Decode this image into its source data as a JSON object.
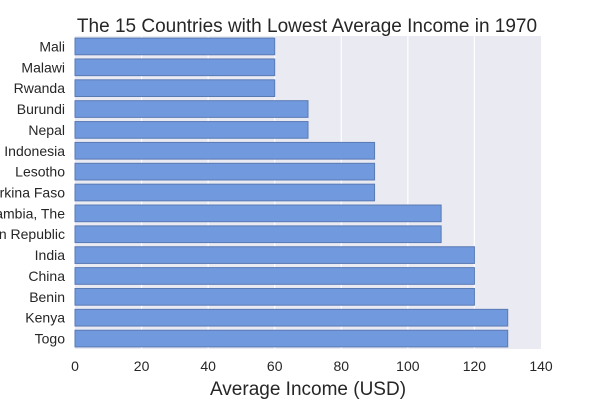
{
  "chart_data": {
    "type": "bar",
    "orientation": "horizontal",
    "title": "The 15 Countries with Lowest Average Income in 1970",
    "xlabel": "Average Income (USD)",
    "ylabel": "",
    "xlim": [
      0,
      140
    ],
    "xticks": [
      0,
      20,
      40,
      60,
      80,
      100,
      120,
      140
    ],
    "grid": true,
    "categories": [
      "Mali",
      "Malawi",
      "Rwanda",
      "Burundi",
      "Nepal",
      "Indonesia",
      "Lesotho",
      "Burkina Faso",
      "Gambia, The",
      "Central African Republic",
      "India",
      "China",
      "Benin",
      "Kenya",
      "Togo"
    ],
    "values": [
      60,
      60,
      60,
      70,
      70,
      90,
      90,
      90,
      110,
      110,
      120,
      120,
      120,
      130,
      130
    ],
    "colors": {
      "bar": "#7199DE",
      "bar_edge": "#5A7AB4",
      "plot_bg": "#EAEAF2",
      "grid": "#FFFFFF",
      "text": "#262626"
    }
  }
}
